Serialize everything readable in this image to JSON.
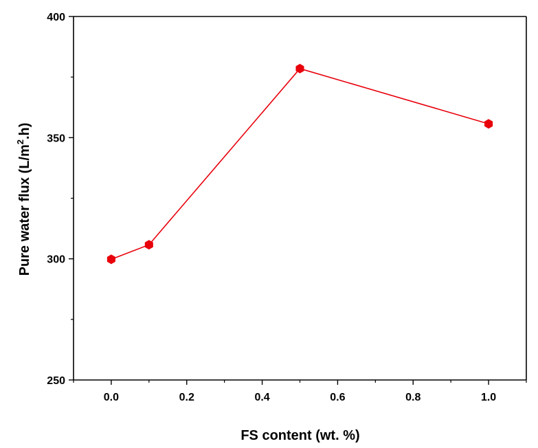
{
  "chart_data": {
    "type": "line",
    "title": "",
    "xlabel": "FS content (wt. %)",
    "ylabel": {
      "prefix": "Pure water flux (L/m",
      "superscript": "2",
      "suffix": ".h)"
    },
    "xlim": [
      -0.1,
      1.1
    ],
    "ylim": [
      250,
      400
    ],
    "x_ticks": [
      0.0,
      0.2,
      0.4,
      0.6,
      0.8,
      1.0
    ],
    "x_tick_labels": [
      "0.0",
      "0.2",
      "0.4",
      "0.6",
      "0.8",
      "1.0"
    ],
    "y_ticks": [
      250,
      300,
      350,
      400
    ],
    "y_tick_labels": [
      "250",
      "300",
      "350",
      "400"
    ],
    "x_minor_ticks": [
      -0.1,
      0.1,
      0.3,
      0.5,
      0.7,
      0.9,
      1.1
    ],
    "y_minor_ticks": [
      275,
      325,
      375
    ],
    "grid": false,
    "legend": "none",
    "series": [
      {
        "x": [
          0.0,
          0.1,
          0.5,
          1.0
        ],
        "values": [
          299.8,
          305.8,
          378.5,
          355.7
        ],
        "color": "#e8000b",
        "marker": "hexagon"
      }
    ]
  }
}
